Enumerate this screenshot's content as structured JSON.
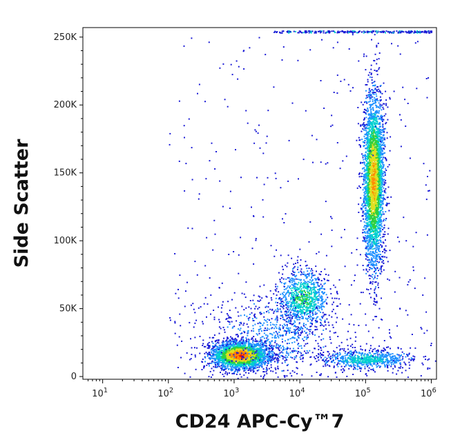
{
  "chart_data": {
    "type": "scatter",
    "subtype": "flow-cytometry-density-dot-plot",
    "xlabel": "CD24 APC-Cy™7",
    "ylabel": "Side Scatter",
    "x_scale": "log",
    "xlim": [
      5,
      1200000
    ],
    "ylim": [
      -2000,
      257000
    ],
    "x_ticks": [
      {
        "value": 10,
        "base": "10",
        "exp": "1"
      },
      {
        "value": 100,
        "base": "10",
        "exp": "2"
      },
      {
        "value": 1000,
        "base": "10",
        "exp": "3"
      },
      {
        "value": 10000,
        "base": "10",
        "exp": "4"
      },
      {
        "value": 100000,
        "base": "10",
        "exp": "5"
      },
      {
        "value": 1000000,
        "base": "10",
        "exp": "6"
      }
    ],
    "y_ticks": [
      {
        "value": 0,
        "label": "0"
      },
      {
        "value": 50000,
        "label": "50K"
      },
      {
        "value": 100000,
        "label": "100K"
      },
      {
        "value": 150000,
        "label": "150K"
      },
      {
        "value": 200000,
        "label": "200K"
      },
      {
        "value": 250000,
        "label": "250K"
      }
    ],
    "grid": false,
    "colormap": [
      "#1a1ad6",
      "#1e90ff",
      "#00d0d0",
      "#30d040",
      "#e0e020",
      "#ff8c00",
      "#e81010"
    ],
    "populations": [
      {
        "x_center": 1200,
        "y_center": 16000,
        "x_log_spread": 0.22,
        "y_spread": 5000,
        "count": 2600,
        "peak": 0.95
      },
      {
        "x_center": 11000,
        "y_center": 58000,
        "x_log_spread": 0.2,
        "y_spread": 11000,
        "count": 900,
        "peak": 0.45
      },
      {
        "x_center": 130000,
        "y_center": 145000,
        "x_log_spread": 0.08,
        "y_spread": 32000,
        "count": 3200,
        "peak": 0.8
      },
      {
        "x_center": 100000,
        "y_center": 13000,
        "x_log_spread": 0.35,
        "y_spread": 3500,
        "count": 700,
        "peak": 0.35
      },
      {
        "x_center": 4000,
        "y_center": 30000,
        "x_log_spread": 0.45,
        "y_spread": 15000,
        "count": 700,
        "peak": 0.15
      }
    ]
  }
}
